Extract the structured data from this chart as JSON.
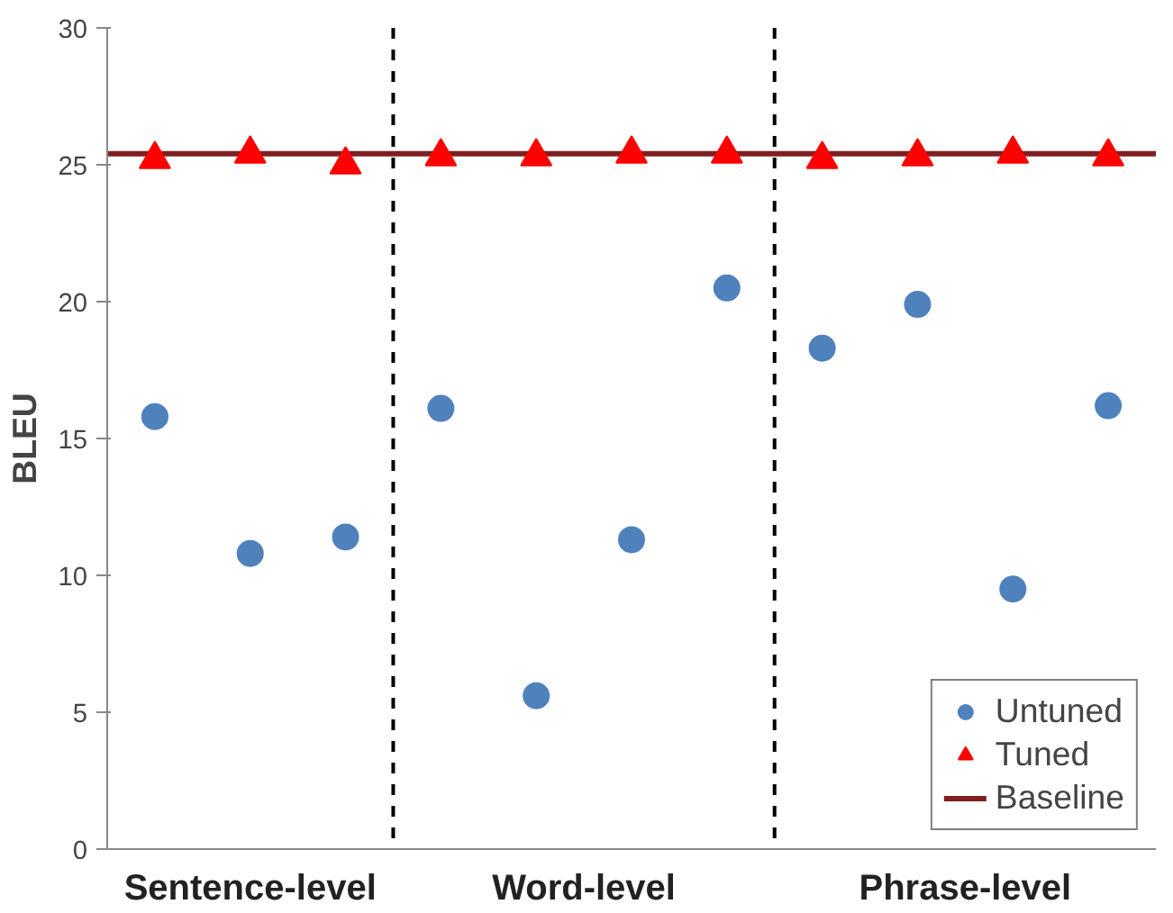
{
  "chart_data": {
    "type": "scatter",
    "ylabel": "BLEU",
    "categories": [
      null,
      null,
      null,
      null,
      null,
      null,
      null,
      null,
      null,
      null,
      null
    ],
    "ylim": [
      0,
      30
    ],
    "yticks": [
      0,
      5,
      10,
      15,
      20,
      25,
      30
    ],
    "series": [
      {
        "name": "Untuned",
        "marker": "circle",
        "color": "#4f81bd",
        "values": [
          15.8,
          10.8,
          11.4,
          16.1,
          5.6,
          11.3,
          20.5,
          18.3,
          19.9,
          9.5,
          16.2
        ]
      },
      {
        "name": "Tuned",
        "marker": "triangle",
        "color": "#ff0000",
        "values": [
          25.2,
          25.4,
          25.0,
          25.3,
          25.3,
          25.4,
          25.4,
          25.2,
          25.3,
          25.4,
          25.3
        ]
      }
    ],
    "ref_lines": [
      {
        "axis": "y",
        "value": 25.4,
        "label": "Baseline",
        "color": "#7f1f1f",
        "line_style": "solid"
      }
    ],
    "annotations": [
      "Sentence-level",
      "Word-level",
      "Phrase-level"
    ],
    "grid": false,
    "legend": "bottom right"
  }
}
